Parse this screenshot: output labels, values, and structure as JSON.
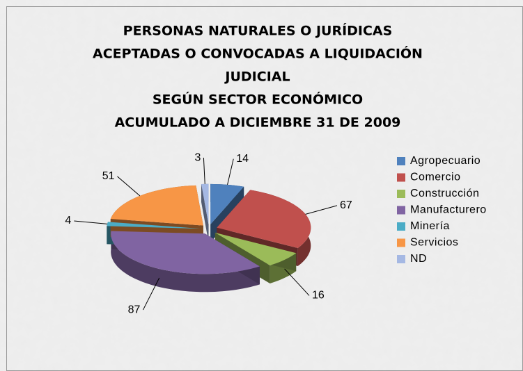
{
  "chart_data": {
    "type": "pie",
    "title": [
      "PERSONAS NATURALES O  JURÍDICAS",
      "ACEPTADAS O CONVOCADAS A LIQUIDACIÓN",
      "JUDICIAL",
      "SEGÚN SECTOR ECONÓMICO",
      "ACUMULADO A DICIEMBRE 31 DE 2009"
    ],
    "categories": [
      "Agropecuario",
      "Comercio",
      "Construcción",
      "Manufacturero",
      "Minería",
      "Servicios",
      "ND"
    ],
    "values": [
      14,
      67,
      16,
      87,
      4,
      51,
      3
    ],
    "colors": [
      "#4f81bd",
      "#c0504d",
      "#9bbb59",
      "#8064a2",
      "#4bacc6",
      "#f79646",
      "#a5b8e3"
    ],
    "legend": "right"
  }
}
